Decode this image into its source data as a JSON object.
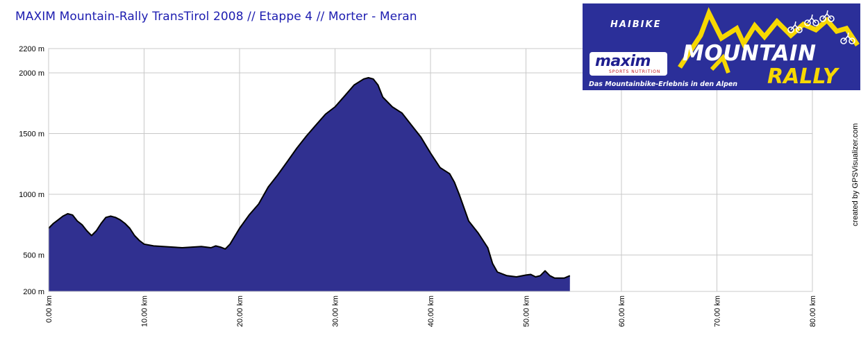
{
  "chart_data": {
    "type": "area",
    "title": "MAXIM Mountain-Rally TransTirol 2008 // Etappe 4 // Morter - Meran",
    "x_unit": "km",
    "y_unit": "m",
    "xlim": [
      0,
      80
    ],
    "ylim": [
      200,
      2200
    ],
    "x_ticks": [
      0,
      10,
      20,
      30,
      40,
      50,
      60,
      70,
      80
    ],
    "x_tick_labels": [
      "0.00 km",
      "10.00 km",
      "20.00 km",
      "30.00 km",
      "40.00 km",
      "50.00 km",
      "60.00 km",
      "70.00 km",
      "80.00 km"
    ],
    "y_ticks": [
      200,
      500,
      1000,
      1500,
      2000,
      2200
    ],
    "y_tick_labels": [
      "200 m",
      "500 m",
      "1000 m",
      "1500 m",
      "2000 m",
      "2200 m"
    ],
    "grid": true,
    "fill_color": "#303090",
    "line_color": "#000000",
    "series": [
      {
        "x": [
          0,
          0.5,
          1,
          1.5,
          2,
          2.5,
          3,
          3.5,
          4,
          4.5,
          5,
          5.5,
          6,
          6.5,
          7,
          7.5,
          8,
          8.5,
          9,
          9.5,
          10,
          11,
          12,
          13,
          14,
          15,
          16,
          17,
          17.5,
          18,
          18.5,
          19,
          20,
          21,
          22,
          23,
          24,
          25,
          26,
          27,
          28,
          29,
          30,
          31,
          32,
          33,
          33.5,
          34,
          34.5,
          35,
          36,
          37,
          38,
          39,
          40,
          41,
          42,
          42.5,
          43,
          44,
          45,
          46,
          46.5,
          47,
          48,
          49,
          50,
          50.5,
          51,
          51.5,
          52,
          52.5,
          53,
          54,
          54.6
        ],
        "y": [
          720,
          760,
          790,
          820,
          840,
          830,
          780,
          750,
          700,
          660,
          700,
          760,
          810,
          820,
          810,
          790,
          760,
          720,
          660,
          620,
          590,
          575,
          570,
          565,
          560,
          565,
          570,
          560,
          575,
          565,
          550,
          590,
          720,
          830,
          920,
          1060,
          1160,
          1270,
          1380,
          1480,
          1570,
          1660,
          1720,
          1810,
          1900,
          1950,
          1960,
          1950,
          1900,
          1800,
          1720,
          1670,
          1570,
          1470,
          1340,
          1220,
          1170,
          1100,
          1000,
          780,
          680,
          560,
          430,
          360,
          330,
          320,
          335,
          340,
          320,
          330,
          370,
          330,
          310,
          310,
          330
        ]
      }
    ]
  },
  "credit": "created by GPSVisualizer.com",
  "logo": {
    "brand": "HAIBIKE",
    "sponsor": "maxim",
    "sponsor_sub": "SPORTS NUTRITION",
    "word1": "MOUNTAIN",
    "word2": "RALLY",
    "tagline": "Das Mountainbike-Erlebnis in den Alpen",
    "background_color": "#2b2f99",
    "accent_color": "#f7d800"
  }
}
